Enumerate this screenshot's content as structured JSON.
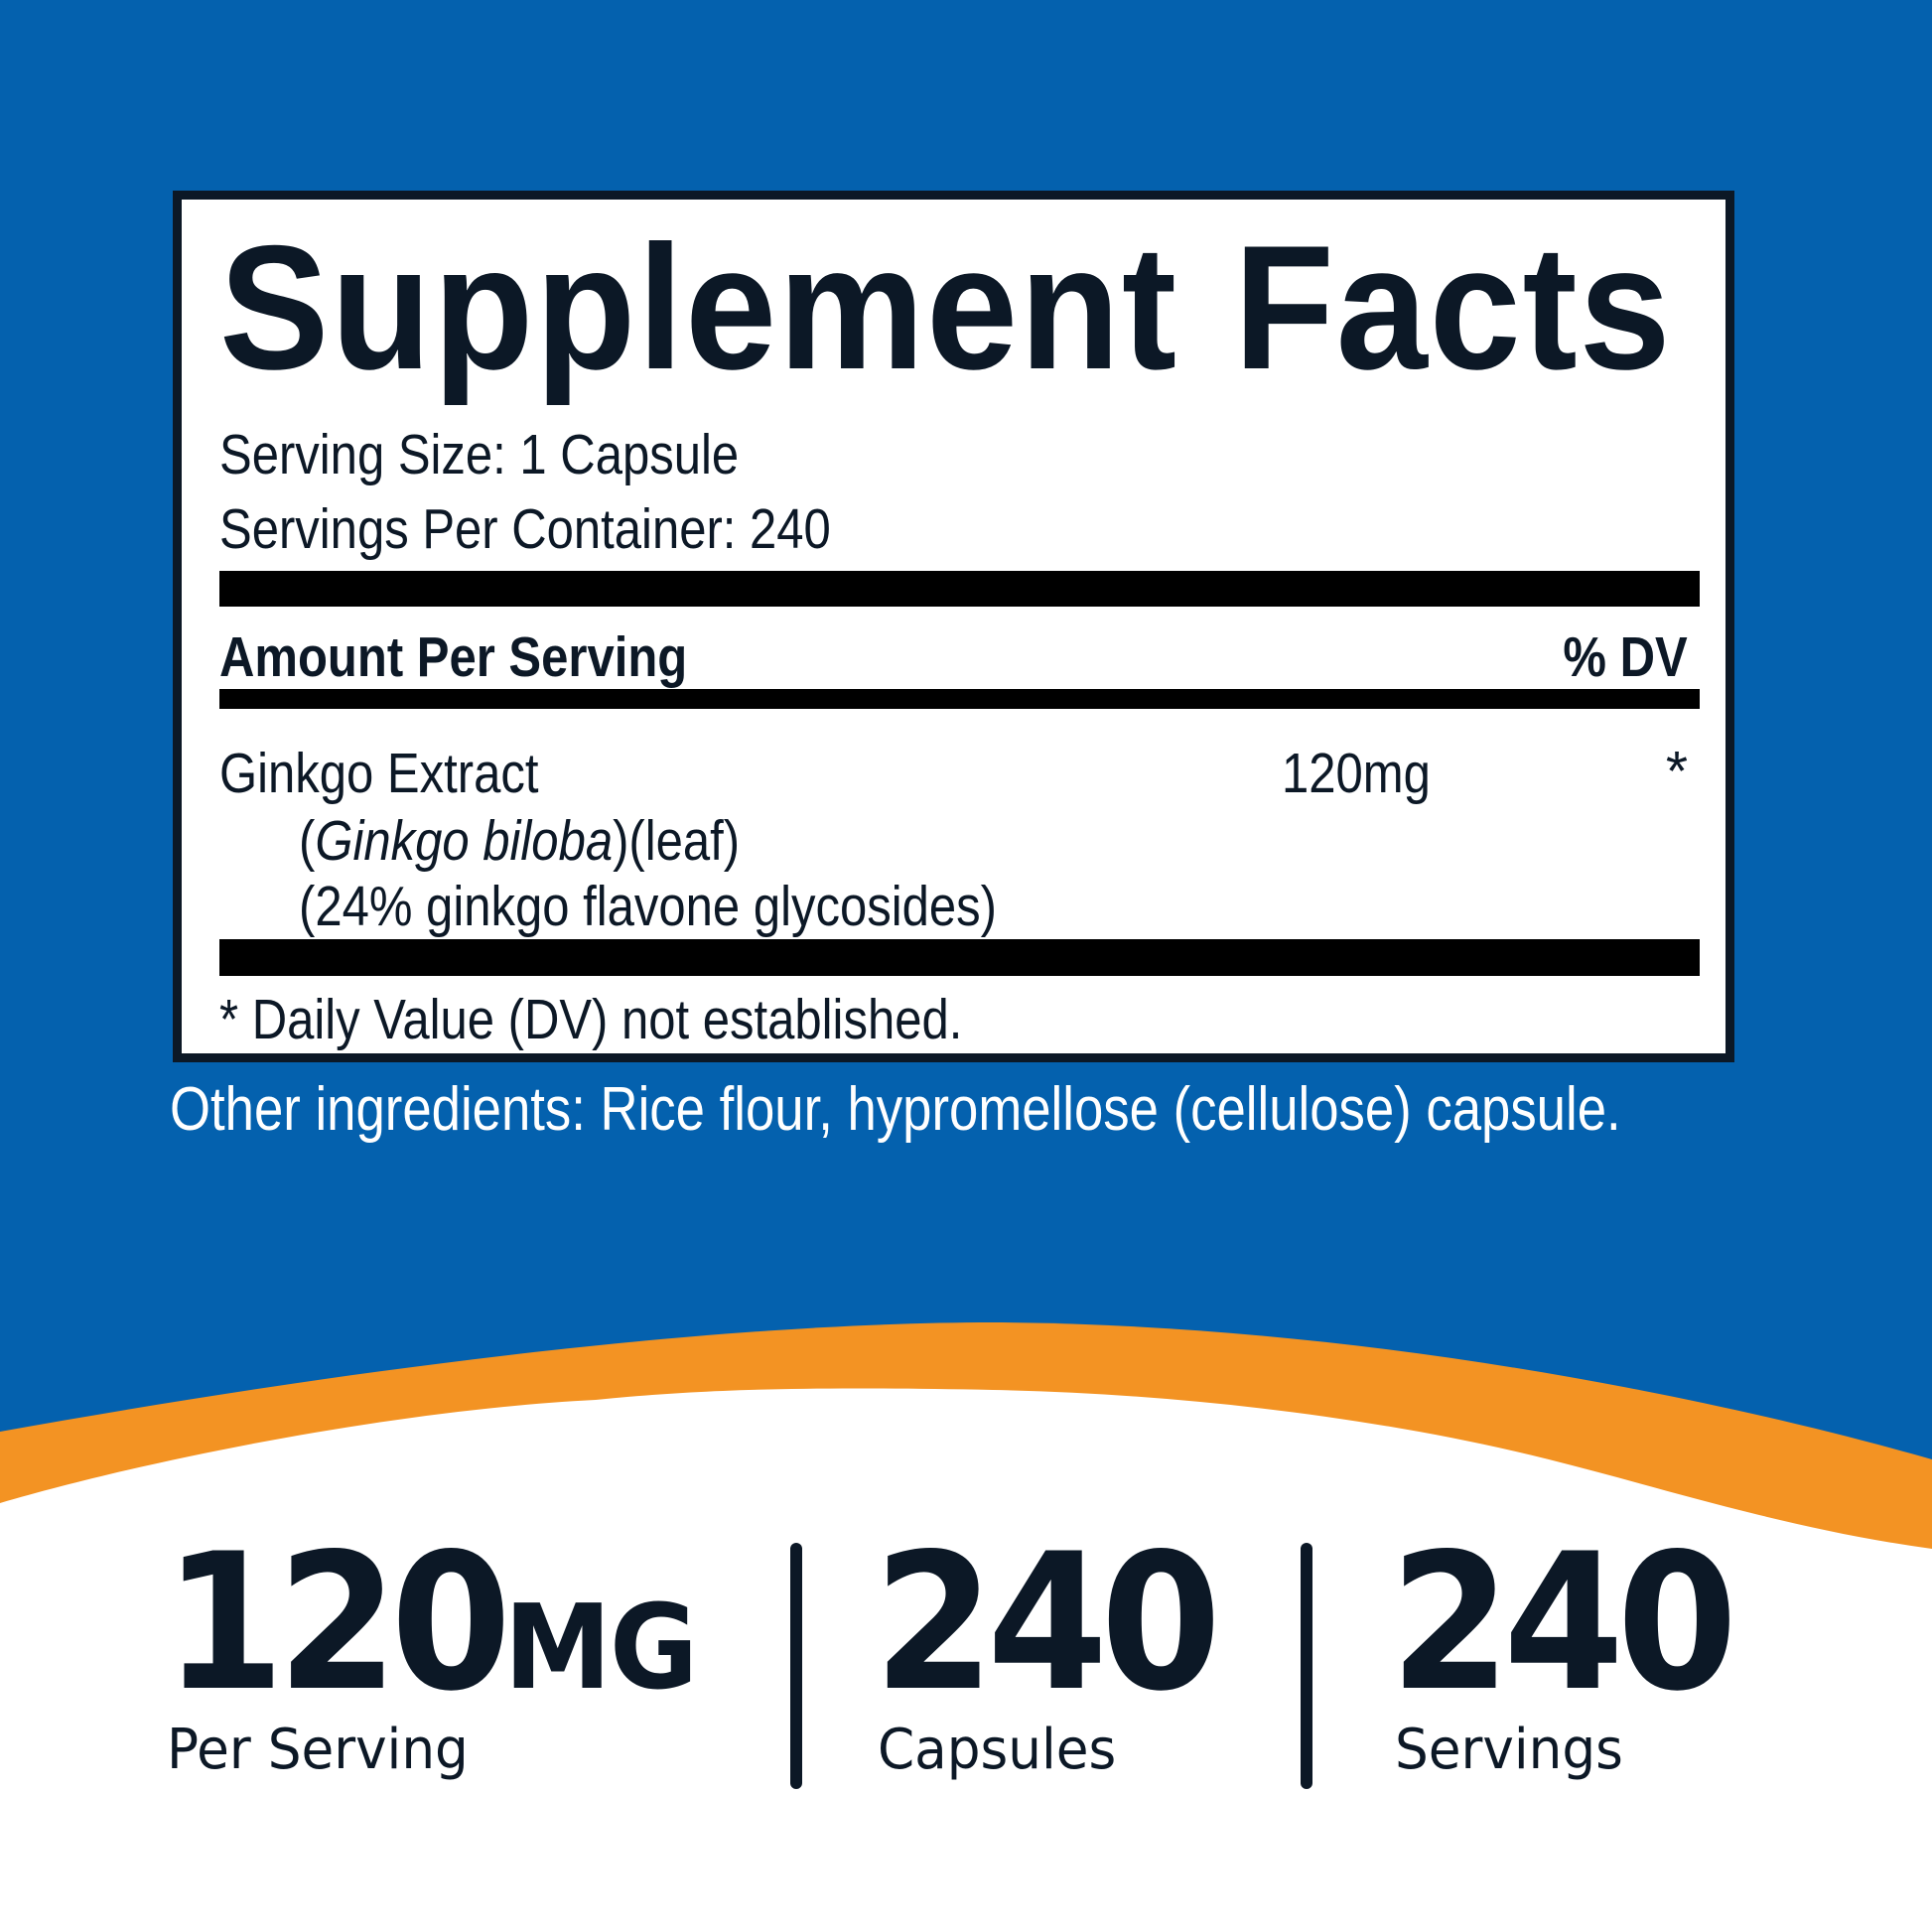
{
  "colors": {
    "background_blue": "#0461ae",
    "accent_orange": "#f39323",
    "text_dark": "#0c1826",
    "white": "#ffffff"
  },
  "facts": {
    "title_word1": "Supplement",
    "title_word2": "Facts",
    "serving_size": "Serving Size: 1 Capsule",
    "servings_per_container": "Servings Per Container: 240",
    "amount_header": "Amount Per Serving",
    "dv_header": "% DV",
    "ingredient": {
      "name": "Ginkgo Extract",
      "latin_open": "(",
      "latin": "Ginkgo biloba",
      "latin_close": ")(leaf)",
      "standardization": "(24% ginkgo flavone glycosides)",
      "amount": "120mg",
      "dv": "*"
    },
    "footnote": "* Daily Value (DV) not established."
  },
  "other_ingredients": "Other ingredients: Rice flour, hypromellose (cellulose) capsule.",
  "stats": [
    {
      "value": "120",
      "unit": "MG",
      "label": "Per Serving"
    },
    {
      "value": "240",
      "unit": "",
      "label": "Capsules"
    },
    {
      "value": "240",
      "unit": "",
      "label": "Servings"
    }
  ]
}
